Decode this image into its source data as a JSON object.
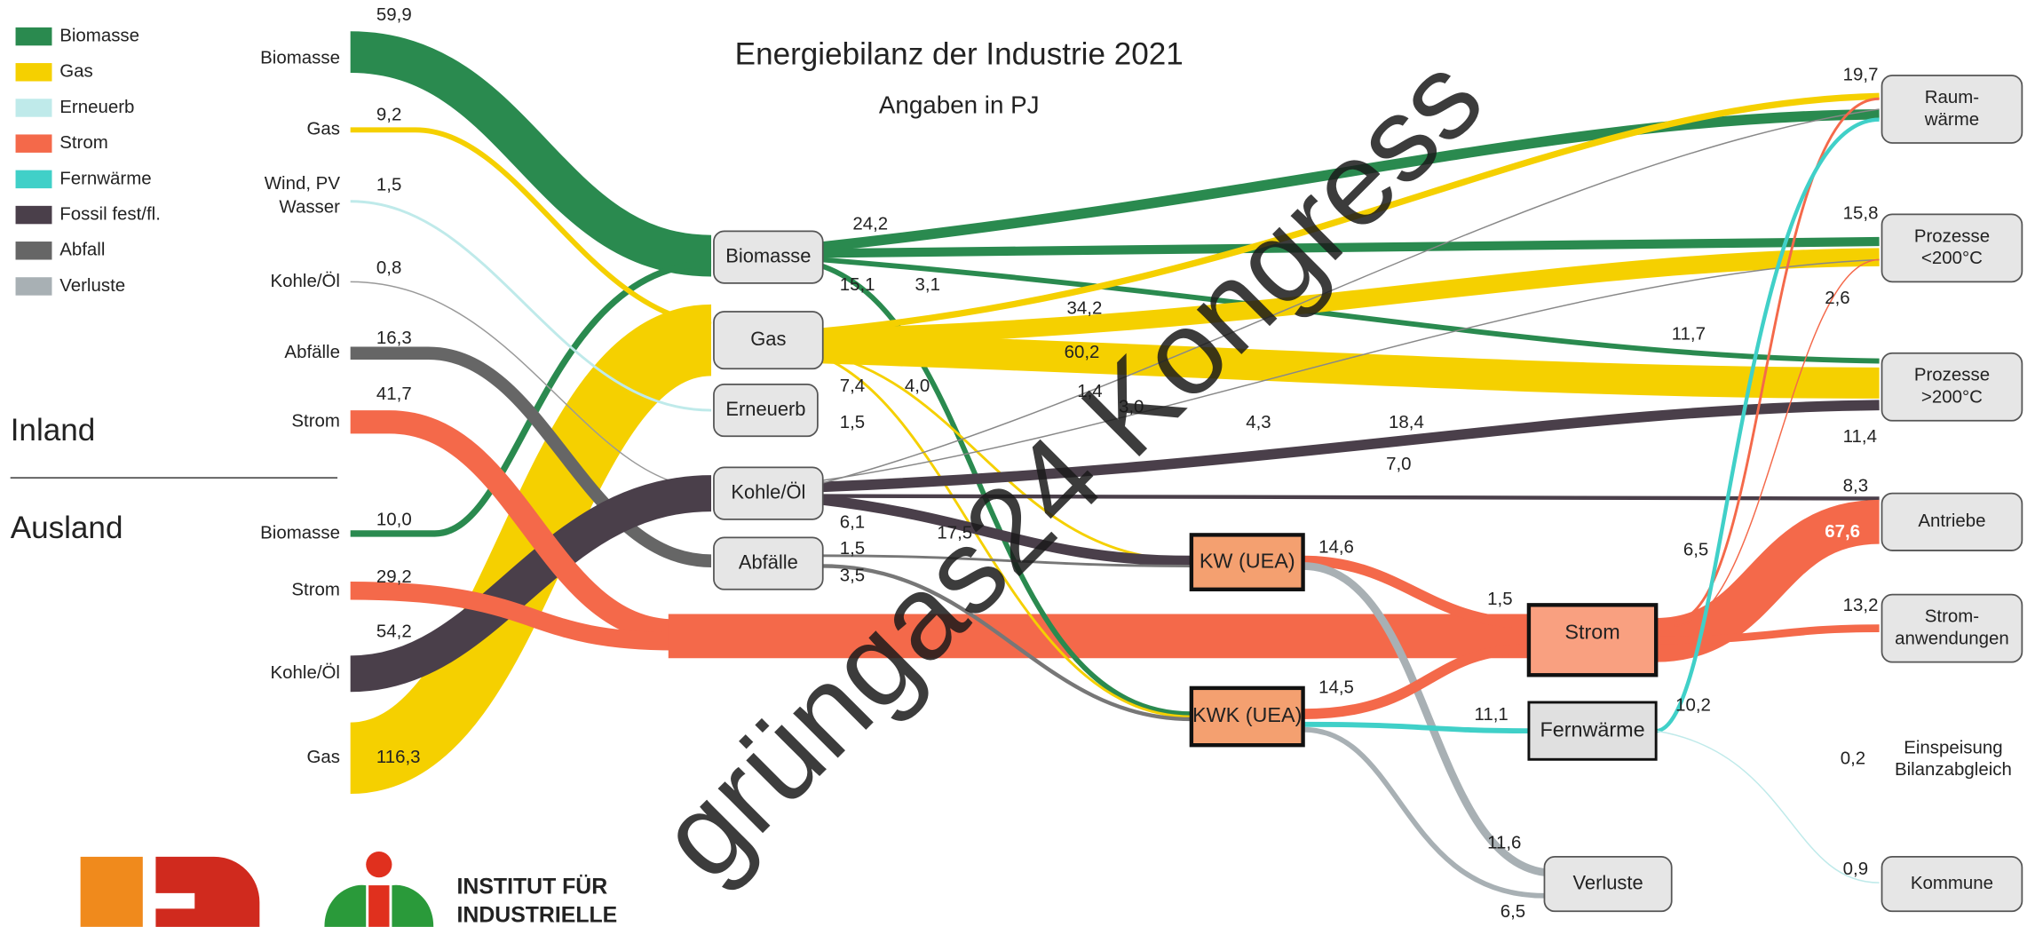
{
  "title": "Energiebilanz der Industrie 2021",
  "subtitle": "Angaben in PJ",
  "legend": [
    "Biomasse",
    "Gas",
    "Erneuerb",
    "Strom",
    "Fernwärme",
    "Fossil fest/fl.",
    "Abfall",
    "Verluste"
  ],
  "regions": [
    "Inland",
    "Ausland"
  ],
  "sources": [
    {
      "label": [
        "Biomasse"
      ],
      "value": "59,9"
    },
    {
      "label": [
        "Gas"
      ],
      "value": "9,2"
    },
    {
      "label": [
        "Wind, PV",
        "Wasser"
      ],
      "value": "1,5"
    },
    {
      "label": [
        "Kohle/Öl"
      ],
      "value": "0,8"
    },
    {
      "label": [
        "Abfälle"
      ],
      "value": "16,3"
    },
    {
      "label": [
        "Strom"
      ],
      "value": "41,7"
    },
    {
      "label": [
        "Biomasse"
      ],
      "value": "10,0"
    },
    {
      "label": [
        "Strom"
      ],
      "value": "29,2"
    },
    {
      "label": [
        "Kohle/Öl"
      ],
      "value": "54,2"
    },
    {
      "label": [
        "Gas"
      ],
      "value": "116,3"
    }
  ],
  "nodes": [
    "Biomasse",
    "Gas",
    "Erneuerb",
    "Kohle/Öl",
    "Abfälle",
    "KW (UEA)",
    "KWK (UEA)",
    "Strom",
    "Fernwärme",
    "Verluste"
  ],
  "targets": [
    {
      "label": [
        "Raum-",
        "wärme"
      ],
      "value": "19,7"
    },
    {
      "label": [
        "Prozesse",
        "<200°C"
      ],
      "value": "15,8"
    },
    {
      "label": [
        "Prozesse",
        ">200°C"
      ],
      "value": "11,4"
    },
    {
      "label": [
        "Antriebe"
      ],
      "value": "8,3"
    },
    {
      "label": [
        "Strom-",
        "anwendungen"
      ],
      "value": "13,2"
    },
    {
      "label": [
        "Einspeisung",
        "Bilanzabgleich"
      ],
      "value": "0,2"
    },
    {
      "label": [
        "Kommune"
      ],
      "value": "0,9"
    }
  ],
  "flow_labels": [
    "24,2",
    "15,1",
    "3,1",
    "34,2",
    "60,2",
    "11,7",
    "7,4",
    "4,0",
    "1,5",
    "1,4",
    "3,0",
    "4,3",
    "18,4",
    "7,0",
    "6,1",
    "1,5",
    "3,5",
    "17,5",
    "14,6",
    "1,5",
    "14,5",
    "11,1",
    "10,2",
    "11,6",
    "6,5",
    "6,5",
    "2,6",
    "67,6"
  ],
  "watermark": "grüngas24 Kongress",
  "logo": [
    "INSTITUT FÜR",
    "INDUSTRIELLE"
  ]
}
